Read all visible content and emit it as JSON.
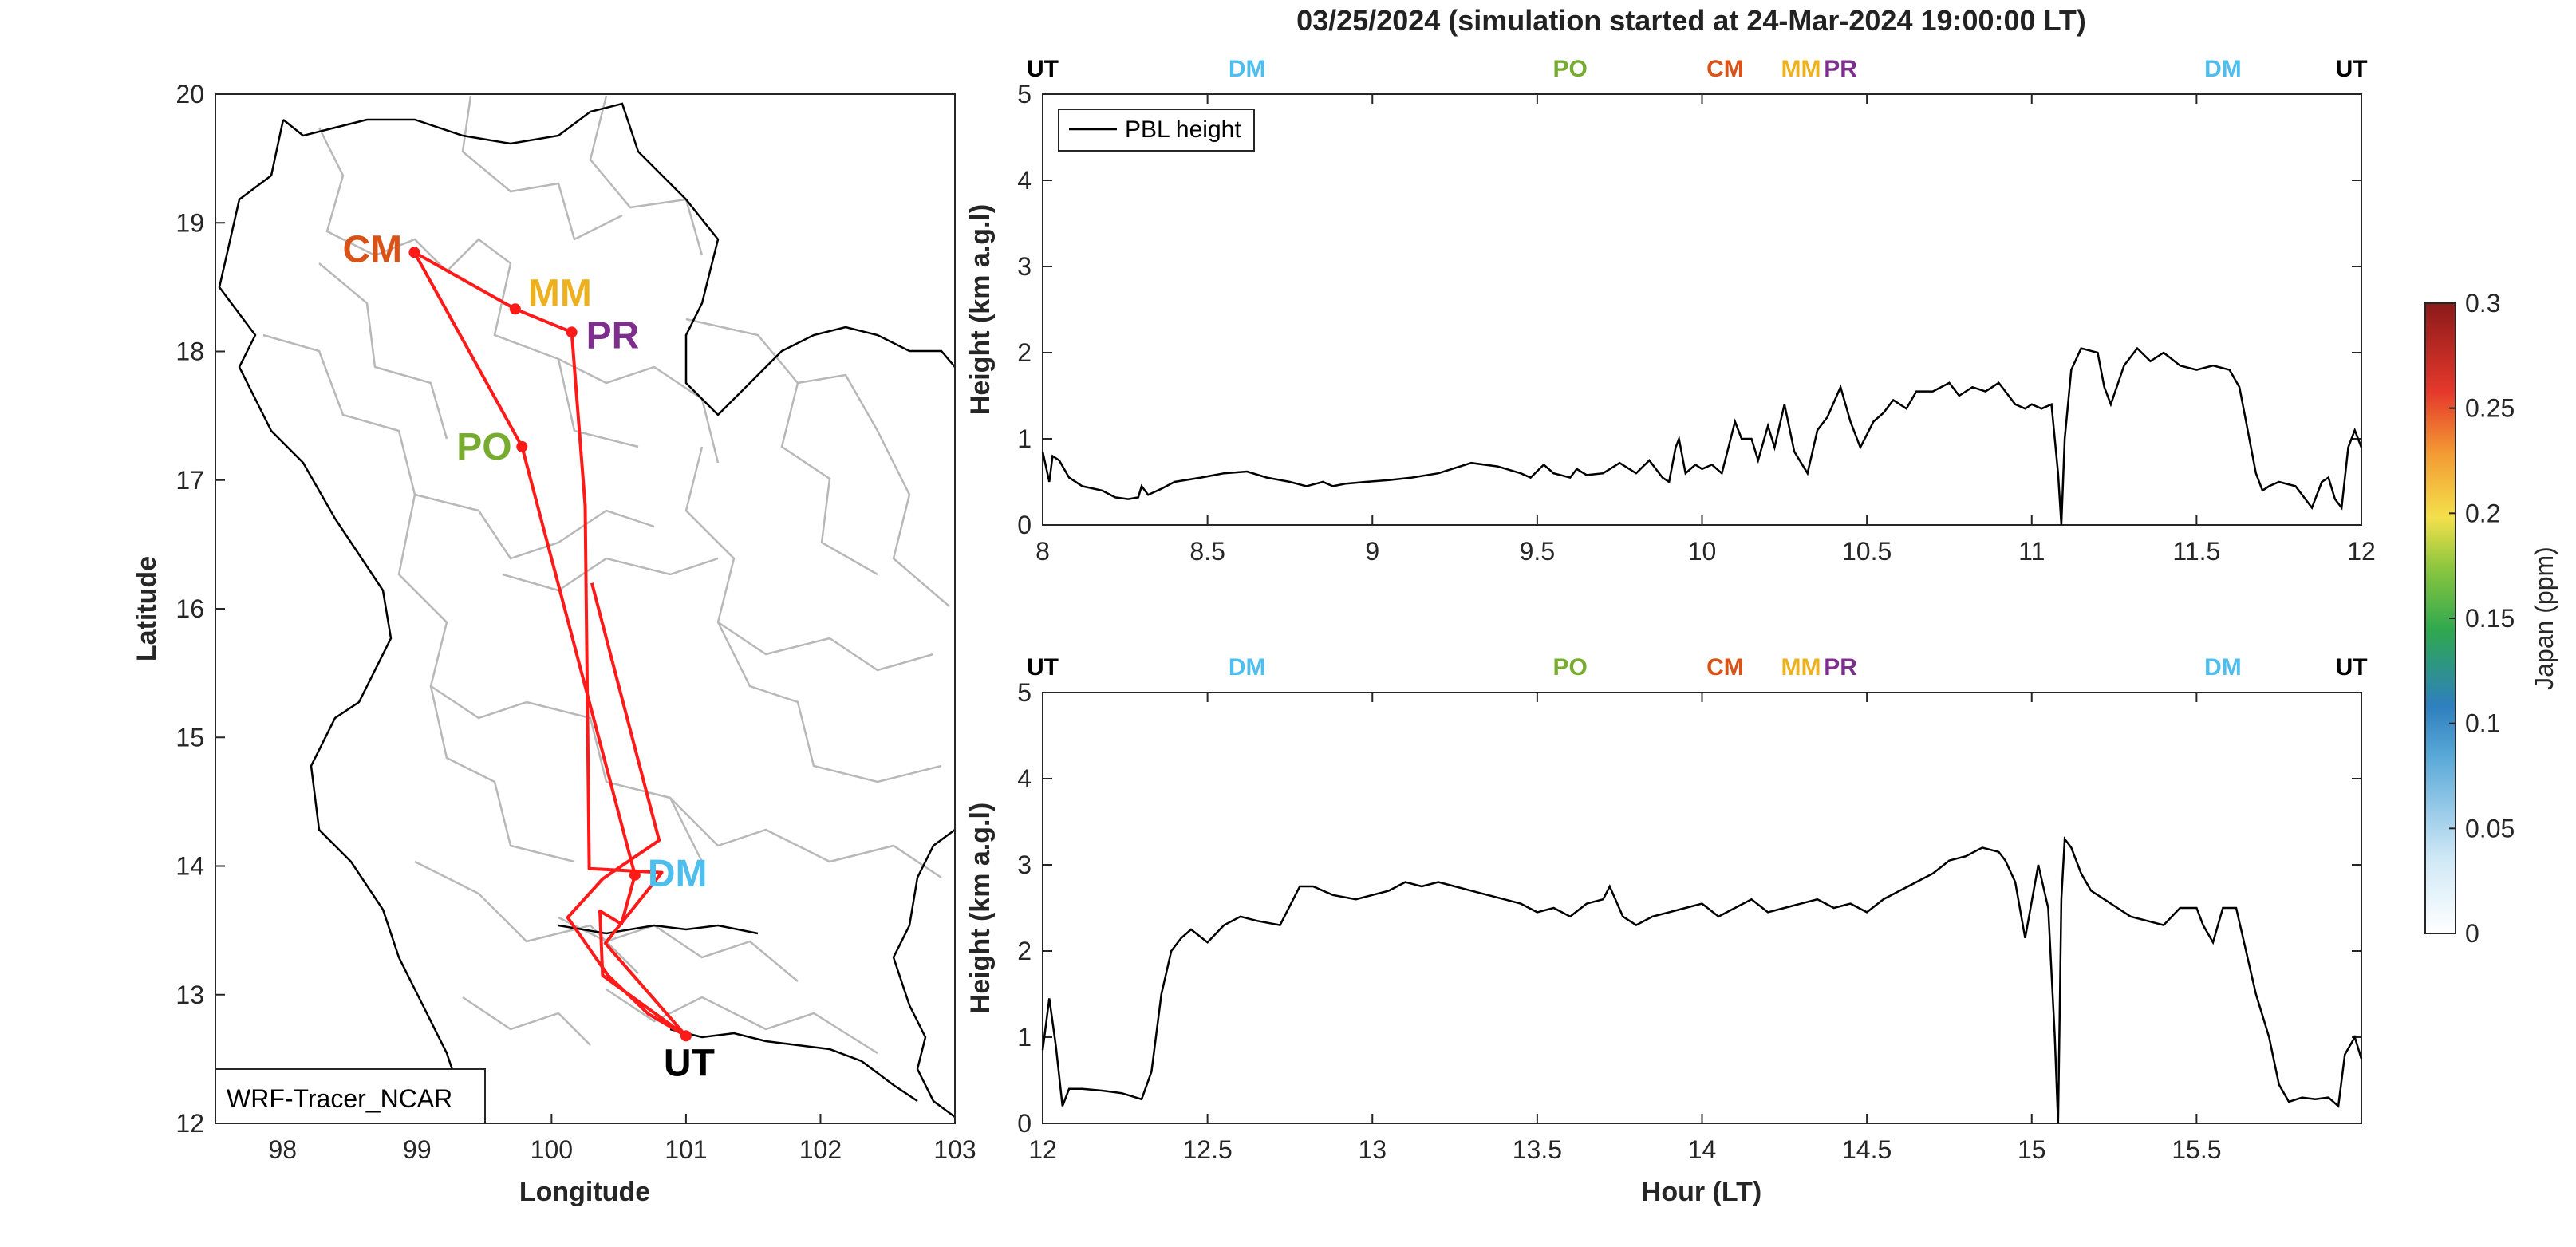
{
  "figure": {
    "title": "03/25/2024 (simulation started at 24-Mar-2024 19:00:00 LT)"
  },
  "map": {
    "xlabel": "Longitude",
    "ylabel": "Latitude",
    "xlim": [
      97.5,
      103
    ],
    "ylim": [
      12,
      20
    ],
    "xticks": [
      "98",
      "99",
      "100",
      "101",
      "102",
      "103"
    ],
    "yticks": [
      "12",
      "13",
      "14",
      "15",
      "16",
      "17",
      "18",
      "19",
      "20"
    ],
    "model_label": "WRF-Tracer_NCAR",
    "route_color": "#ff1a1a",
    "route": [
      {
        "lon": 101.0,
        "lat": 12.68
      },
      {
        "lon": 100.38,
        "lat": 13.15
      },
      {
        "lon": 100.36,
        "lat": 13.65
      },
      {
        "lon": 100.52,
        "lat": 13.55
      },
      {
        "lon": 100.62,
        "lat": 13.93
      },
      {
        "lon": 99.78,
        "lat": 17.26
      },
      {
        "lon": 98.98,
        "lat": 18.77
      },
      {
        "lon": 99.73,
        "lat": 18.33
      },
      {
        "lon": 100.15,
        "lat": 18.15
      },
      {
        "lon": 100.25,
        "lat": 16.8
      },
      {
        "lon": 100.28,
        "lat": 13.98
      },
      {
        "lon": 100.82,
        "lat": 13.95
      },
      {
        "lon": 100.4,
        "lat": 13.4
      },
      {
        "lon": 101.0,
        "lat": 12.68
      },
      {
        "lon": 100.72,
        "lat": 12.85
      },
      {
        "lon": 100.42,
        "lat": 13.15
      },
      {
        "lon": 100.12,
        "lat": 13.6
      },
      {
        "lon": 100.38,
        "lat": 13.9
      },
      {
        "lon": 100.8,
        "lat": 14.2
      },
      {
        "lon": 100.3,
        "lat": 16.2
      }
    ],
    "sites": [
      {
        "code": "CM",
        "lon": 98.98,
        "lat": 18.77,
        "color": "#d95319"
      },
      {
        "code": "MM",
        "lon": 99.73,
        "lat": 18.33,
        "color": "#edb120"
      },
      {
        "code": "PR",
        "lon": 100.15,
        "lat": 18.15,
        "color": "#7e2f8e"
      },
      {
        "code": "PO",
        "lon": 99.78,
        "lat": 17.26,
        "color": "#77ac30"
      },
      {
        "code": "DM",
        "lon": 100.62,
        "lat": 13.93,
        "color": "#4dbeee"
      },
      {
        "code": "UT",
        "lon": 101.0,
        "lat": 12.68,
        "color": "#000000"
      }
    ]
  },
  "colorbar": {
    "label": "Japan (ppm)",
    "ticks": [
      "0",
      "0.05",
      "0.1",
      "0.15",
      "0.2",
      "0.25",
      "0.3"
    ]
  },
  "chart_data": [
    {
      "type": "line",
      "xlim": [
        8,
        12
      ],
      "ylim": [
        0,
        5
      ],
      "xticks": [
        "8",
        "8.5",
        "9",
        "9.5",
        "10",
        "10.5",
        "11",
        "11.5",
        "12"
      ],
      "yticks": [
        "0",
        "1",
        "2",
        "3",
        "4",
        "5"
      ],
      "ylabel": "Height (km a.g.l)",
      "legend": "top-left",
      "site_markers": [
        {
          "code": "UT",
          "x": 8.0,
          "color": "#000000"
        },
        {
          "code": "DM",
          "x": 8.62,
          "color": "#4dbeee"
        },
        {
          "code": "PO",
          "x": 9.6,
          "color": "#77ac30"
        },
        {
          "code": "CM",
          "x": 10.07,
          "color": "#d95319"
        },
        {
          "code": "MM",
          "x": 10.3,
          "color": "#edb120"
        },
        {
          "code": "PR",
          "x": 10.42,
          "color": "#7e2f8e"
        },
        {
          "code": "DM",
          "x": 11.58,
          "color": "#4dbeee"
        },
        {
          "code": "UT",
          "x": 11.97,
          "color": "#000000"
        }
      ],
      "series": [
        {
          "name": "PBL height",
          "x": [
            8.0,
            8.02,
            8.03,
            8.05,
            8.08,
            8.12,
            8.18,
            8.22,
            8.26,
            8.29,
            8.3,
            8.32,
            8.36,
            8.4,
            8.48,
            8.55,
            8.62,
            8.68,
            8.75,
            8.8,
            8.85,
            8.88,
            8.92,
            8.98,
            9.05,
            9.12,
            9.2,
            9.3,
            9.38,
            9.45,
            9.48,
            9.52,
            9.55,
            9.6,
            9.62,
            9.65,
            9.7,
            9.75,
            9.8,
            9.84,
            9.88,
            9.9,
            9.92,
            9.93,
            9.95,
            9.98,
            10.0,
            10.03,
            10.06,
            10.08,
            10.1,
            10.12,
            10.15,
            10.17,
            10.2,
            10.22,
            10.25,
            10.28,
            10.32,
            10.35,
            10.38,
            10.42,
            10.45,
            10.48,
            10.52,
            10.55,
            10.58,
            10.62,
            10.65,
            10.7,
            10.75,
            10.78,
            10.82,
            10.86,
            10.9,
            10.95,
            10.98,
            11.0,
            11.03,
            11.06,
            11.08,
            11.09,
            11.1,
            11.12,
            11.15,
            11.2,
            11.22,
            11.24,
            11.28,
            11.32,
            11.36,
            11.4,
            11.45,
            11.5,
            11.55,
            11.6,
            11.63,
            11.65,
            11.68,
            11.7,
            11.72,
            11.75,
            11.8,
            11.85,
            11.88,
            11.9,
            11.92,
            11.94,
            11.96,
            11.98,
            12.0
          ],
          "y": [
            0.85,
            0.5,
            0.8,
            0.75,
            0.55,
            0.45,
            0.4,
            0.32,
            0.3,
            0.32,
            0.45,
            0.35,
            0.42,
            0.5,
            0.55,
            0.6,
            0.62,
            0.55,
            0.5,
            0.45,
            0.5,
            0.45,
            0.48,
            0.5,
            0.52,
            0.55,
            0.6,
            0.72,
            0.68,
            0.6,
            0.55,
            0.7,
            0.6,
            0.55,
            0.65,
            0.58,
            0.6,
            0.72,
            0.6,
            0.75,
            0.55,
            0.5,
            0.9,
            1.0,
            0.6,
            0.7,
            0.65,
            0.7,
            0.6,
            0.9,
            1.2,
            1.0,
            1.0,
            0.75,
            1.15,
            0.9,
            1.4,
            0.85,
            0.6,
            1.1,
            1.25,
            1.6,
            1.2,
            0.9,
            1.2,
            1.3,
            1.45,
            1.35,
            1.55,
            1.55,
            1.65,
            1.5,
            1.6,
            1.55,
            1.65,
            1.4,
            1.35,
            1.4,
            1.35,
            1.4,
            0.6,
            0.0,
            1.0,
            1.8,
            2.05,
            2.0,
            1.6,
            1.4,
            1.85,
            2.05,
            1.9,
            2.0,
            1.85,
            1.8,
            1.85,
            1.8,
            1.6,
            1.2,
            0.6,
            0.4,
            0.45,
            0.5,
            0.45,
            0.2,
            0.5,
            0.55,
            0.3,
            0.2,
            0.9,
            1.1,
            0.9
          ]
        }
      ]
    },
    {
      "type": "line",
      "xlim": [
        12,
        16
      ],
      "ylim": [
        0,
        5
      ],
      "xticks": [
        "12",
        "12.5",
        "13",
        "13.5",
        "14",
        "14.5",
        "15",
        "15.5"
      ],
      "yticks": [
        "0",
        "1",
        "2",
        "3",
        "4",
        "5"
      ],
      "xlabel": "Hour (LT)",
      "ylabel": "Height (km a.g.l)",
      "site_markers": [
        {
          "code": "UT",
          "x": 12.0,
          "color": "#000000"
        },
        {
          "code": "DM",
          "x": 12.62,
          "color": "#4dbeee"
        },
        {
          "code": "PO",
          "x": 13.6,
          "color": "#77ac30"
        },
        {
          "code": "CM",
          "x": 14.07,
          "color": "#d95319"
        },
        {
          "code": "MM",
          "x": 14.3,
          "color": "#edb120"
        },
        {
          "code": "PR",
          "x": 14.42,
          "color": "#7e2f8e"
        },
        {
          "code": "DM",
          "x": 15.58,
          "color": "#4dbeee"
        },
        {
          "code": "UT",
          "x": 15.97,
          "color": "#000000"
        }
      ],
      "series": [
        {
          "name": "PBL height",
          "x": [
            12.0,
            12.02,
            12.04,
            12.06,
            12.08,
            12.12,
            12.18,
            12.24,
            12.3,
            12.33,
            12.36,
            12.39,
            12.42,
            12.45,
            12.5,
            12.55,
            12.6,
            12.65,
            12.72,
            12.78,
            12.82,
            12.88,
            12.95,
            13.0,
            13.05,
            13.1,
            13.15,
            13.2,
            13.25,
            13.3,
            13.35,
            13.4,
            13.45,
            13.5,
            13.55,
            13.6,
            13.65,
            13.7,
            13.72,
            13.76,
            13.8,
            13.85,
            13.9,
            13.95,
            14.0,
            14.05,
            14.1,
            14.15,
            14.2,
            14.25,
            14.3,
            14.35,
            14.4,
            14.45,
            14.5,
            14.55,
            14.6,
            14.65,
            14.7,
            14.75,
            14.8,
            14.85,
            14.9,
            14.92,
            14.95,
            14.98,
            15.02,
            15.05,
            15.07,
            15.08,
            15.09,
            15.1,
            15.12,
            15.15,
            15.18,
            15.22,
            15.26,
            15.3,
            15.35,
            15.4,
            15.45,
            15.5,
            15.52,
            15.55,
            15.58,
            15.62,
            15.65,
            15.68,
            15.72,
            15.75,
            15.78,
            15.82,
            15.86,
            15.9,
            15.93,
            15.95,
            15.98,
            16.0
          ],
          "y": [
            0.85,
            1.45,
            0.9,
            0.2,
            0.4,
            0.4,
            0.38,
            0.35,
            0.28,
            0.6,
            1.5,
            2.0,
            2.15,
            2.25,
            2.1,
            2.3,
            2.4,
            2.35,
            2.3,
            2.75,
            2.75,
            2.65,
            2.6,
            2.65,
            2.7,
            2.8,
            2.75,
            2.8,
            2.75,
            2.7,
            2.65,
            2.6,
            2.55,
            2.45,
            2.5,
            2.4,
            2.55,
            2.6,
            2.75,
            2.4,
            2.3,
            2.4,
            2.45,
            2.5,
            2.55,
            2.4,
            2.5,
            2.6,
            2.45,
            2.5,
            2.55,
            2.6,
            2.5,
            2.55,
            2.45,
            2.6,
            2.7,
            2.8,
            2.9,
            3.05,
            3.1,
            3.2,
            3.15,
            3.05,
            2.8,
            2.15,
            3.0,
            2.5,
            1.0,
            0.0,
            2.6,
            3.3,
            3.2,
            2.9,
            2.7,
            2.6,
            2.5,
            2.4,
            2.35,
            2.3,
            2.5,
            2.5,
            2.3,
            2.1,
            2.5,
            2.5,
            2.0,
            1.5,
            1.0,
            0.45,
            0.25,
            0.3,
            0.28,
            0.3,
            0.2,
            0.8,
            1.0,
            0.75
          ]
        }
      ]
    }
  ]
}
